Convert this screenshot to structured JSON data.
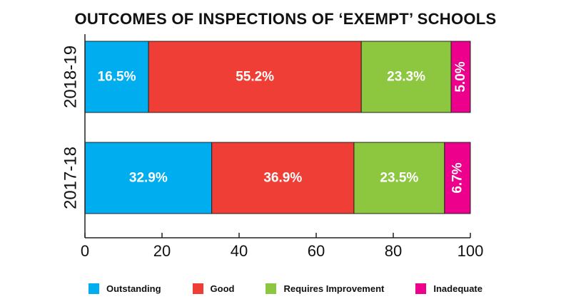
{
  "chart_data": {
    "type": "bar",
    "orientation": "horizontal",
    "stacked": true,
    "title": "OUTCOMES OF INSPECTIONS OF ‘EXEMPT’ SCHOOLS",
    "categories": [
      "2018-19",
      "2017-18"
    ],
    "series": [
      {
        "name": "Outstanding",
        "color": "#00aeef",
        "values": [
          16.5,
          32.9
        ],
        "labels": [
          "16.5%",
          "32.9%"
        ]
      },
      {
        "name": "Good",
        "color": "#ef3e36",
        "values": [
          55.2,
          36.9
        ],
        "labels": [
          "55.2%",
          "36.9%"
        ]
      },
      {
        "name": "Requires Improvement",
        "color": "#8dc63f",
        "values": [
          23.3,
          23.5
        ],
        "labels": [
          "23.3%",
          "23.5%"
        ]
      },
      {
        "name": "Inadequate",
        "color": "#ec008c",
        "values": [
          5.0,
          6.7
        ],
        "labels": [
          "5.0%",
          "6.7%"
        ]
      }
    ],
    "xlim": [
      0,
      100
    ],
    "xticks": [
      "0",
      "20",
      "40",
      "60",
      "80",
      "100"
    ],
    "grid": false,
    "legend_position": "bottom"
  }
}
